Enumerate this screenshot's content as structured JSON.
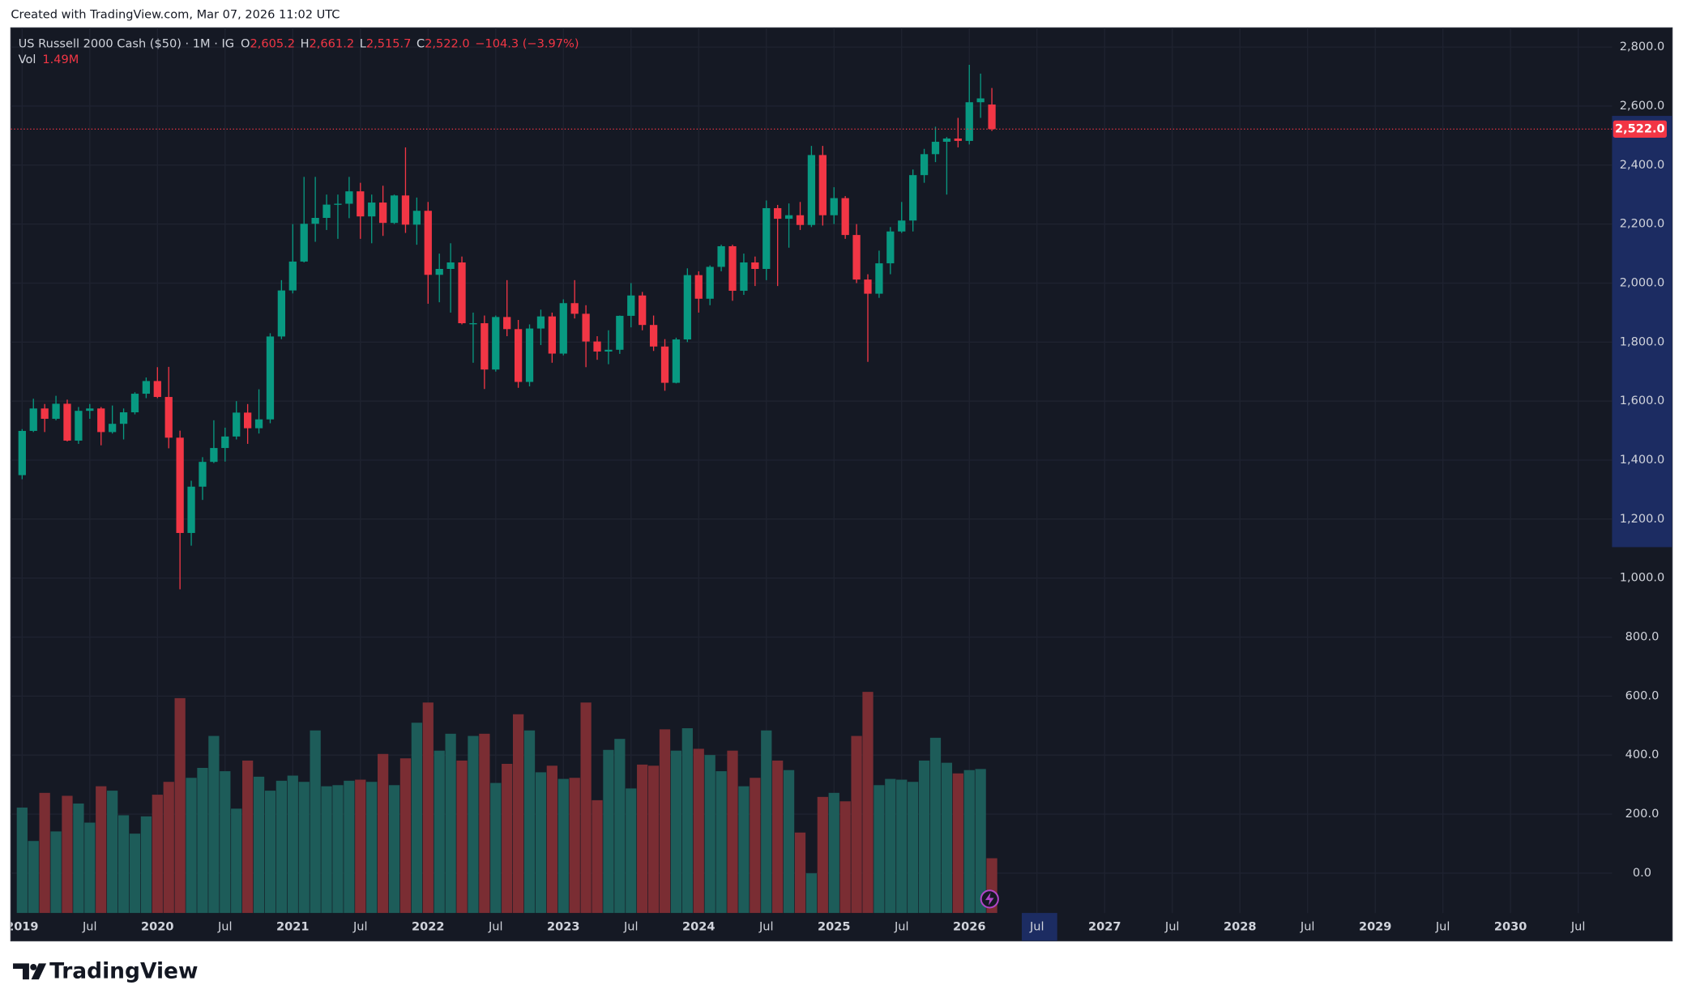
{
  "created_note": "Created with TradingView.com, Mar 07, 2026 11:02 UTC",
  "brand": "TradingView",
  "chart_data": {
    "type": "candlestick",
    "title": "US Russell 2000 Cash ($50) · 1M · IG",
    "ohlc_header": [
      {
        "label": "O",
        "value": "2,605.2"
      },
      {
        "label": "H",
        "value": "2,661.2"
      },
      {
        "label": "L",
        "value": "2,515.7"
      },
      {
        "label": "C",
        "value": "2,522.0"
      }
    ],
    "change_label": "−104.3 (−3.97%)",
    "volume_name": "Vol",
    "volume_value_label": "1.49M",
    "last_price_label": "2,522.0",
    "up_color": "#089981",
    "down_color": "#f23645",
    "volume_up_color": "#1d5c59",
    "volume_down_color": "#7a2d33",
    "grid": true,
    "x": [
      "2019-01",
      "2019-02",
      "2019-03",
      "2019-04",
      "2019-05",
      "2019-06",
      "2019-07",
      "2019-08",
      "2019-09",
      "2019-10",
      "2019-11",
      "2019-12",
      "2020-01",
      "2020-02",
      "2020-03",
      "2020-04",
      "2020-05",
      "2020-06",
      "2020-07",
      "2020-08",
      "2020-09",
      "2020-10",
      "2020-11",
      "2020-12",
      "2021-01",
      "2021-02",
      "2021-03",
      "2021-04",
      "2021-05",
      "2021-06",
      "2021-07",
      "2021-08",
      "2021-09",
      "2021-10",
      "2021-11",
      "2021-12",
      "2022-01",
      "2022-02",
      "2022-03",
      "2022-04",
      "2022-05",
      "2022-06",
      "2022-07",
      "2022-08",
      "2022-09",
      "2022-10",
      "2022-11",
      "2022-12",
      "2023-01",
      "2023-02",
      "2023-03",
      "2023-04",
      "2023-05",
      "2023-06",
      "2023-07",
      "2023-08",
      "2023-09",
      "2023-10",
      "2023-11",
      "2023-12",
      "2024-01",
      "2024-02",
      "2024-03",
      "2024-04",
      "2024-05",
      "2024-06",
      "2024-07",
      "2024-08",
      "2024-09",
      "2024-10",
      "2024-11",
      "2024-12",
      "2025-01",
      "2025-02",
      "2025-03",
      "2025-04",
      "2025-05",
      "2025-06",
      "2025-07",
      "2025-08",
      "2025-09",
      "2025-10",
      "2025-11",
      "2025-12",
      "2026-01",
      "2026-02",
      "2026-03"
    ],
    "open": [
      1349,
      1499,
      1575,
      1540,
      1591,
      1466,
      1567,
      1575,
      1495,
      1523,
      1562,
      1625,
      1668,
      1614,
      1476,
      1153,
      1310,
      1394,
      1441,
      1480,
      1561,
      1508,
      1538,
      1819,
      1975,
      2073,
      2201,
      2221,
      2266,
      2269,
      2311,
      2226,
      2273,
      2204,
      2297,
      2198,
      2245,
      2028,
      2048,
      2070,
      1864,
      1864,
      1707,
      1885,
      1844,
      1665,
      1846,
      1887,
      1761,
      1932,
      1896,
      1802,
      1768,
      1774,
      1889,
      1958,
      1858,
      1785,
      1662,
      1809,
      2027,
      1947,
      2055,
      2125,
      1974,
      2070,
      2048,
      2254,
      2218,
      2230,
      2197,
      2434,
      2230,
      2288,
      2163,
      2012,
      1964,
      2067,
      2175,
      2212,
      2366,
      2437,
      2479,
      2490,
      2482,
      2613,
      2605.2
    ],
    "high": [
      1505,
      1608,
      1590,
      1618,
      1605,
      1580,
      1590,
      1580,
      1585,
      1575,
      1630,
      1680,
      1715,
      1716,
      1500,
      1330,
      1410,
      1535,
      1510,
      1600,
      1590,
      1640,
      1830,
      2010,
      2200,
      2360,
      2360,
      2300,
      2300,
      2360,
      2340,
      2300,
      2330,
      2300,
      2460,
      2290,
      2275,
      2100,
      2135,
      2090,
      1900,
      1890,
      1890,
      2010,
      1875,
      1860,
      1910,
      1900,
      1945,
      2010,
      1925,
      1820,
      1840,
      1890,
      2000,
      1970,
      1890,
      1810,
      1815,
      2050,
      2040,
      2060,
      2130,
      2130,
      2100,
      2090,
      2280,
      2265,
      2270,
      2275,
      2465,
      2465,
      2325,
      2295,
      2200,
      2030,
      2110,
      2190,
      2275,
      2385,
      2455,
      2530,
      2495,
      2560,
      2740,
      2710,
      2661.2
    ],
    "low": [
      1335,
      1495,
      1495,
      1535,
      1463,
      1455,
      1540,
      1450,
      1490,
      1470,
      1555,
      1610,
      1610,
      1440,
      962,
      1110,
      1265,
      1390,
      1395,
      1470,
      1455,
      1490,
      1525,
      1810,
      1965,
      2070,
      2140,
      2180,
      2150,
      2220,
      2150,
      2135,
      2160,
      2200,
      2170,
      2130,
      1930,
      1935,
      1900,
      1860,
      1730,
      1641,
      1700,
      1820,
      1645,
      1650,
      1790,
      1730,
      1755,
      1880,
      1715,
      1740,
      1725,
      1760,
      1850,
      1840,
      1770,
      1635,
      1660,
      1800,
      1900,
      1925,
      2040,
      1940,
      1960,
      1990,
      2010,
      1990,
      2120,
      2180,
      2190,
      2195,
      2200,
      2150,
      2000,
      1733,
      1950,
      2030,
      2170,
      2175,
      2340,
      2410,
      2300,
      2460,
      2470,
      2560,
      2515.7
    ],
    "close": [
      1499,
      1575,
      1540,
      1591,
      1466,
      1567,
      1575,
      1495,
      1523,
      1562,
      1625,
      1668,
      1614,
      1476,
      1153,
      1310,
      1394,
      1441,
      1480,
      1561,
      1508,
      1538,
      1819,
      1975,
      2073,
      2201,
      2221,
      2266,
      2269,
      2311,
      2226,
      2273,
      2204,
      2297,
      2198,
      2245,
      2028,
      2048,
      2070,
      1864,
      1864,
      1707,
      1885,
      1844,
      1665,
      1846,
      1887,
      1761,
      1932,
      1896,
      1802,
      1768,
      1774,
      1889,
      1958,
      1858,
      1785,
      1662,
      1809,
      2027,
      1947,
      2055,
      2125,
      1974,
      2070,
      2048,
      2254,
      2218,
      2230,
      2197,
      2434,
      2230,
      2288,
      2163,
      2012,
      1964,
      2067,
      2175,
      2212,
      2366,
      2437,
      2479,
      2490,
      2482,
      2613,
      2626,
      2522.0
    ],
    "volume": [
      2.87,
      1.96,
      3.27,
      2.22,
      3.19,
      2.98,
      2.46,
      3.45,
      3.33,
      2.66,
      2.16,
      2.63,
      3.22,
      3.57,
      5.85,
      3.68,
      3.95,
      4.82,
      3.86,
      2.84,
      4.15,
      3.71,
      3.33,
      3.6,
      3.74,
      3.57,
      4.97,
      3.45,
      3.48,
      3.6,
      3.63,
      3.57,
      4.33,
      3.48,
      4.21,
      5.18,
      5.73,
      4.42,
      4.88,
      4.15,
      4.82,
      4.88,
      3.54,
      4.06,
      5.41,
      4.97,
      3.83,
      4.01,
      3.65,
      3.68,
      5.73,
      3.07,
      4.44,
      4.74,
      3.39,
      4.04,
      4.01,
      5.0,
      4.42,
      5.03,
      4.47,
      4.3,
      3.86,
      4.42,
      3.45,
      3.68,
      4.97,
      4.15,
      3.89,
      2.19,
      1.08,
      3.16,
      3.27,
      3.04,
      4.82,
      6.02,
      3.48,
      3.65,
      3.63,
      3.57,
      4.15,
      4.77,
      4.09,
      3.8,
      3.89,
      3.92,
      1.49
    ],
    "xlim": [
      "2018-12",
      "2030-10"
    ],
    "xticks": [
      {
        "value": "2019-01",
        "label": "2019"
      },
      {
        "value": "2019-07",
        "label": "Jul"
      },
      {
        "value": "2020-01",
        "label": "2020"
      },
      {
        "value": "2020-07",
        "label": "Jul"
      },
      {
        "value": "2021-01",
        "label": "2021"
      },
      {
        "value": "2021-07",
        "label": "Jul"
      },
      {
        "value": "2022-01",
        "label": "2022"
      },
      {
        "value": "2022-07",
        "label": "Jul"
      },
      {
        "value": "2023-01",
        "label": "2023"
      },
      {
        "value": "2023-07",
        "label": "Jul"
      },
      {
        "value": "2024-01",
        "label": "2024"
      },
      {
        "value": "2024-07",
        "label": "Jul"
      },
      {
        "value": "2025-01",
        "label": "2025"
      },
      {
        "value": "2025-07",
        "label": "Jul"
      },
      {
        "value": "2026-01",
        "label": "2026"
      },
      {
        "value": "2026-07",
        "label": "Jul"
      },
      {
        "value": "2027-01",
        "label": "2027"
      },
      {
        "value": "2027-07",
        "label": "Jul"
      },
      {
        "value": "2028-01",
        "label": "2028"
      },
      {
        "value": "2028-07",
        "label": "Jul"
      },
      {
        "value": "2029-01",
        "label": "2029"
      },
      {
        "value": "2029-07",
        "label": "Jul"
      },
      {
        "value": "2030-01",
        "label": "2030"
      },
      {
        "value": "2030-07",
        "label": "Jul"
      }
    ],
    "ylim": [
      -135,
      2865
    ],
    "yticks": [
      {
        "value": 0,
        "label": "0.0"
      },
      {
        "value": 200,
        "label": "200.0"
      },
      {
        "value": 400,
        "label": "400.0"
      },
      {
        "value": 600,
        "label": "600.0"
      },
      {
        "value": 800,
        "label": "800.0"
      },
      {
        "value": 1000,
        "label": "1,000.0"
      },
      {
        "value": 1200,
        "label": "1,200.0"
      },
      {
        "value": 1400,
        "label": "1,400.0"
      },
      {
        "value": 1600,
        "label": "1,600.0"
      },
      {
        "value": 1800,
        "label": "1,800.0"
      },
      {
        "value": 2000,
        "label": "2,000.0"
      },
      {
        "value": 2200,
        "label": "2,200.0"
      },
      {
        "value": 2400,
        "label": "2,400.0"
      },
      {
        "value": 2600,
        "label": "2,600.0"
      },
      {
        "value": 2800,
        "label": "2,800.0"
      }
    ],
    "volume_ylim": [
      0,
      24.1
    ]
  }
}
